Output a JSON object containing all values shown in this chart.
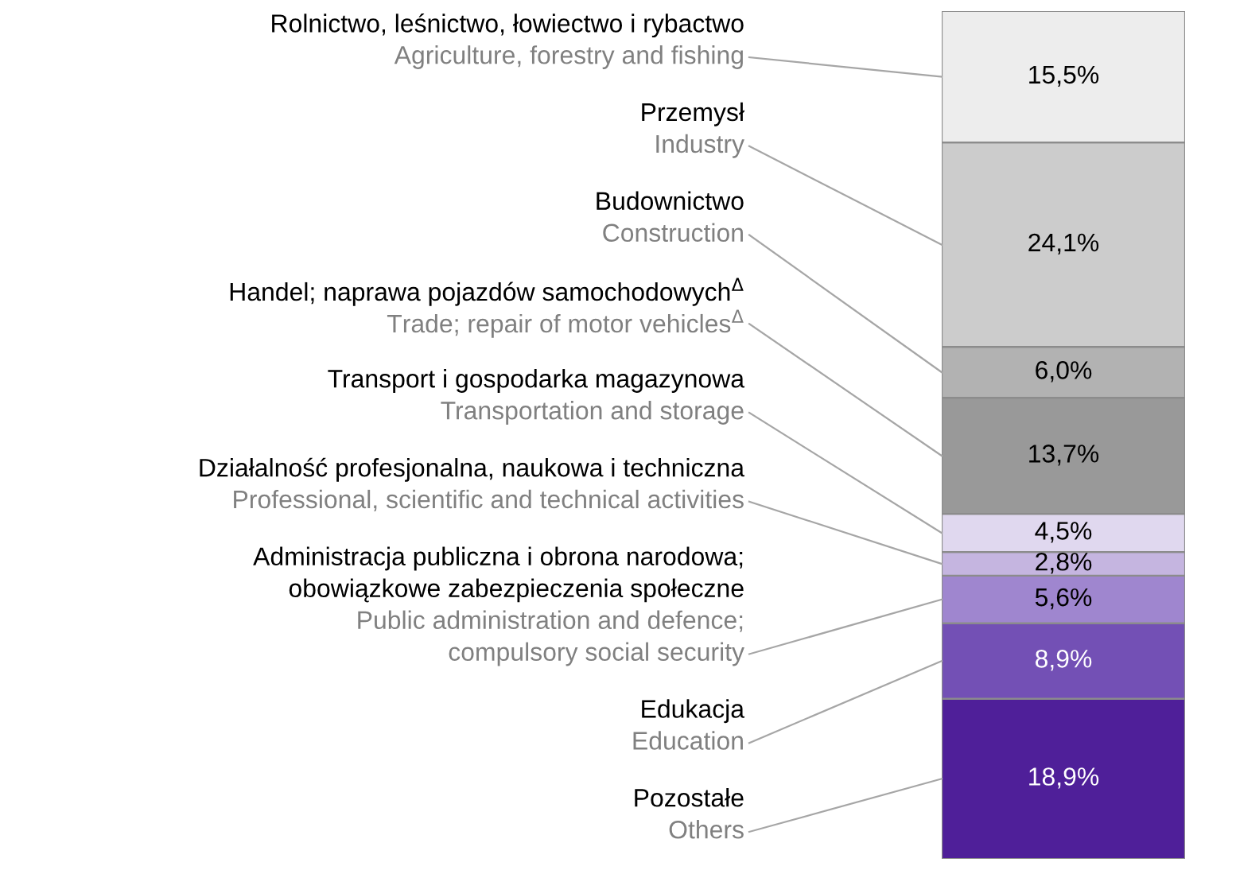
{
  "chart_data": {
    "type": "bar",
    "stacked": true,
    "tick_labels": false,
    "grid": false,
    "legend": false,
    "categories": [
      null
    ],
    "series": [
      {
        "name": "Pozostałe\nOthers",
        "color": "#4f1f99",
        "values": [
          18.9
        ],
        "value_labels": [
          "18,9%"
        ]
      },
      {
        "name": "Edukacja\nEducation",
        "color": "#7350b5",
        "values": [
          8.9
        ],
        "value_labels": [
          "8,9%"
        ]
      },
      {
        "name": "Administracja publiczna i obrona narodowa;\nobowiązkowe zabezpieczenia społeczne\nPublic administration and defence;\ncompulsory social security",
        "color": "#9f86cf",
        "values": [
          5.6
        ],
        "value_labels": [
          "5,6%"
        ]
      },
      {
        "name": "Działalność profesjonalna, naukowa i techniczna\nProfessional, scientific and technical activities",
        "color": "#c5b5e0",
        "values": [
          2.8
        ],
        "value_labels": [
          "2,8%"
        ]
      },
      {
        "name": "Transport i gospodarka magazynowa\nTransportation and storage",
        "color": "#e0d8ef",
        "values": [
          4.5
        ],
        "value_labels": [
          "4,5%"
        ]
      },
      {
        "name": "Handel; naprawa pojazdów samochodowych$^{Δ}$\nTrade; repair of motor vehicles$^{Δ}$",
        "color": "#999999",
        "values": [
          13.7
        ],
        "value_labels": [
          "13,7%"
        ]
      },
      {
        "name": "Budownictwo\nConstruction",
        "color": "#b2b2b2",
        "values": [
          6.0
        ],
        "value_labels": [
          "6,0%"
        ]
      },
      {
        "name": "Przemysł\nIndustry",
        "color": "#cccccc",
        "values": [
          24.1
        ],
        "value_labels": [
          "24,1%"
        ]
      },
      {
        "name": "Rolnictwo, leśnictwo, łowiectwo i rybactwo\nAgriculture, forestry and fishing",
        "color": "#ededed",
        "values": [
          15.5
        ],
        "value_labels": [
          "15,5%"
        ]
      }
    ]
  }
}
